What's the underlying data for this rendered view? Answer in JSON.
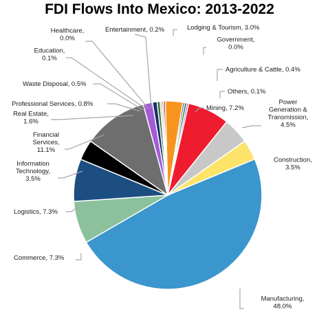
{
  "chart_data": {
    "type": "pie",
    "title": "FDI Flows Into Mexico: 2013-2022",
    "slices": [
      {
        "name": "Lodging & Tourism",
        "label": [
          "Lodging & Tourism, 3.0%"
        ],
        "value": 3.0,
        "color": "#f7941d"
      },
      {
        "name": "Government",
        "label": [
          "Government,",
          "0.0%"
        ],
        "value": 0.0,
        "color": "#1f3b70"
      },
      {
        "name": "Agriculture & Cattle",
        "label": [
          "Agriculture & Cattle, 0.4%"
        ],
        "value": 0.4,
        "color": "#3a7d44"
      },
      {
        "name": "Others",
        "label": [
          "Others, 0.1%"
        ],
        "value": 0.1,
        "color": "#7a4fa0"
      },
      {
        "name": "Mining",
        "label": [
          "Mining, 7.2%"
        ],
        "value": 7.2,
        "color": "#ee1c2e"
      },
      {
        "name": "Power Generation & Transmission",
        "label": [
          "Power",
          "Generation &",
          "Transmission,",
          "4.5%"
        ],
        "value": 4.5,
        "color": "#c8c8c8"
      },
      {
        "name": "Construction",
        "label": [
          "Construction,",
          "3.5%"
        ],
        "value": 3.5,
        "color": "#fde36a"
      },
      {
        "name": "Manufacturing",
        "label": [
          "Manufacturing,",
          "48.0%"
        ],
        "value": 48.0,
        "color": "#3a96cc"
      },
      {
        "name": "Commerce",
        "label": [
          "Commerce, 7.3%"
        ],
        "value": 7.3,
        "color": "#8bc19c"
      },
      {
        "name": "Logistics",
        "label": [
          "Logistics, 7.3%"
        ],
        "value": 7.3,
        "color": "#1d4e82"
      },
      {
        "name": "Information Technology",
        "label": [
          "Information",
          "Technology,",
          "3.5%"
        ],
        "value": 3.5,
        "color": "#000000"
      },
      {
        "name": "Financial Services",
        "label": [
          "Financial",
          "Services,",
          "11.1%"
        ],
        "value": 11.1,
        "color": "#6e6e6e"
      },
      {
        "name": "Real Estate",
        "label": [
          "Real Estate,",
          "1.6%"
        ],
        "value": 1.6,
        "color": "#a35bd6"
      },
      {
        "name": "Professional Services",
        "label": [
          "Professional Services, 0.8%"
        ],
        "value": 0.8,
        "color": "#17306b"
      },
      {
        "name": "Waste Disposal",
        "label": [
          "Waste Disposal, 0.5%"
        ],
        "value": 0.5,
        "color": "#2f6b3a"
      },
      {
        "name": "Education",
        "label": [
          "Education,",
          "0.1%"
        ],
        "value": 0.1,
        "color": "#d1b45c"
      },
      {
        "name": "Healthcare",
        "label": [
          "Healthcare,",
          "0.0%"
        ],
        "value": 0.0,
        "color": "#9b9b9b"
      },
      {
        "name": "Entertainment",
        "label": [
          "Entertainment, 0.2%"
        ],
        "value": 0.2,
        "color": "#c00000"
      }
    ],
    "legend": "none",
    "data_labels": "outside with leader lines"
  }
}
